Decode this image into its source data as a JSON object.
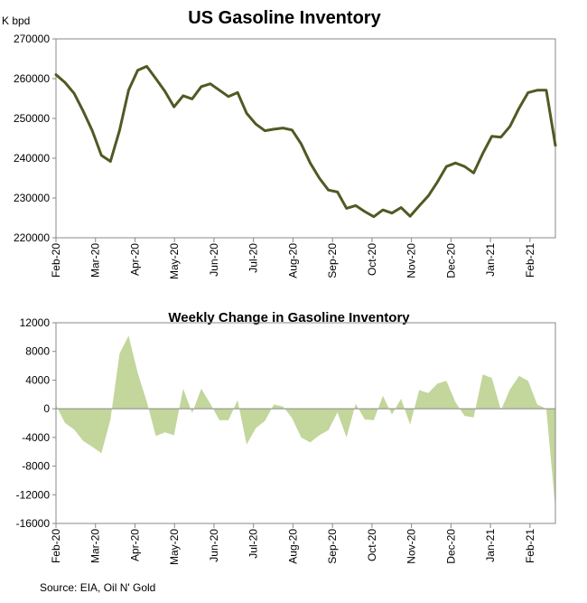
{
  "chart_data": [
    {
      "type": "line",
      "title": "US Gasoline Inventory",
      "ylabel": "K bpd",
      "ylim": [
        220000,
        270000
      ],
      "yticks": [
        220000,
        230000,
        240000,
        250000,
        260000,
        270000
      ],
      "x_tick_labels": [
        "Feb-20",
        "Mar-20",
        "Apr-20",
        "May-20",
        "Jun-20",
        "Jul-20",
        "Aug-20",
        "Sep-20",
        "Oct-20",
        "Nov-20",
        "Dec-20",
        "Jan-21",
        "Feb-21"
      ],
      "weeks_per_label": 4.35,
      "color": "#4f5a23",
      "values": [
        261000,
        259000,
        256300,
        251800,
        246900,
        240700,
        239200,
        247000,
        257100,
        262100,
        263100,
        260000,
        256800,
        252900,
        255700,
        254900,
        258000,
        258700,
        257100,
        255500,
        256500,
        251300,
        248600,
        246900,
        247300,
        247600,
        247100,
        243600,
        238800,
        235000,
        232000,
        231500,
        227400,
        228100,
        226600,
        225300,
        227000,
        226200,
        227600,
        225400,
        228000,
        230500,
        234000,
        237900,
        238800,
        237900,
        236300,
        241200,
        245500,
        245300,
        248000,
        252600,
        256500,
        257100,
        257100,
        243200
      ]
    },
    {
      "type": "area",
      "title": "Weekly Change in Gasoline Inventory",
      "ylim": [
        -16000,
        12000
      ],
      "yticks": [
        -16000,
        -12000,
        -8000,
        -4000,
        0,
        4000,
        8000,
        12000
      ],
      "x_tick_labels": [
        "Feb-20",
        "Mar-20",
        "Apr-20",
        "May-20",
        "Jun-20",
        "Jul-20",
        "Aug-20",
        "Sep-20",
        "Oct-20",
        "Nov-20",
        "Dec-20",
        "Jan-21",
        "Feb-21"
      ],
      "weeks_per_label": 4.35,
      "color": "#c3d69b",
      "values": [
        500,
        -2000,
        -2900,
        -4500,
        -5300,
        -6200,
        -1500,
        7700,
        10200,
        5000,
        1000,
        -3800,
        -3300,
        -3700,
        2800,
        -600,
        2800,
        700,
        -1600,
        -1600,
        1200,
        -5000,
        -2700,
        -1700,
        600,
        300,
        -1300,
        -4000,
        -4700,
        -3700,
        -3000,
        -500,
        -4000,
        700,
        -1500,
        -1600,
        1800,
        -800,
        1400,
        -2200,
        2600,
        2200,
        3500,
        3900,
        900,
        -1000,
        -1200,
        4800,
        4300,
        -200,
        2700,
        4600,
        3900,
        600,
        0,
        -13900
      ]
    }
  ],
  "footer": {
    "source": "Source: EIA, Oil N' Gold"
  }
}
